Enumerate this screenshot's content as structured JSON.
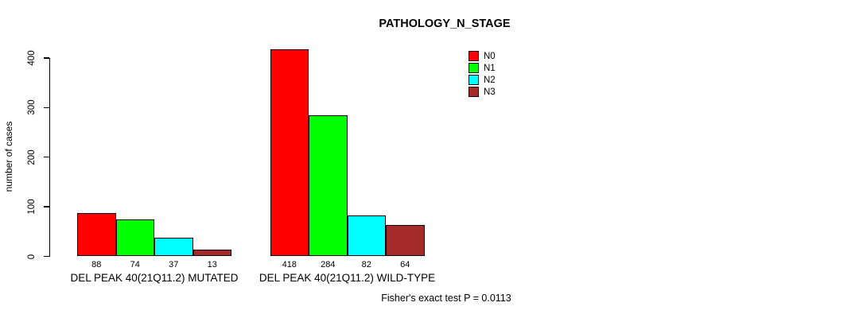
{
  "chart_data": {
    "type": "bar",
    "title": "PATHOLOGY_N_STAGE",
    "ylabel": "number of cases",
    "xlabel": "",
    "ylim": [
      0,
      400
    ],
    "yticks": [
      0,
      100,
      200,
      300,
      400
    ],
    "grid": false,
    "categories": [
      "DEL PEAK 40(21Q11.2) MUTATED",
      "DEL PEAK 40(21Q11.2) WILD-TYPE"
    ],
    "series": [
      {
        "name": "N0",
        "color": "#FF0000",
        "values": [
          88,
          418
        ]
      },
      {
        "name": "N1",
        "color": "#00FF00",
        "values": [
          74,
          284
        ]
      },
      {
        "name": "N2",
        "color": "#00FFFF",
        "values": [
          37,
          82
        ]
      },
      {
        "name": "N3",
        "color": "#A52A2A",
        "values": [
          13,
          64
        ]
      }
    ],
    "bar_value_labels": [
      [
        "88",
        "74",
        "37",
        "13"
      ],
      [
        "418",
        "284",
        "82",
        "64"
      ]
    ],
    "legend": {
      "position": "top-right",
      "entries": [
        "N0",
        "N1",
        "N2",
        "N3"
      ]
    },
    "annotation": "Fisher's exact test P = 0.0113",
    "axis_color": "#000000",
    "background_color": "#FFFFFF"
  }
}
